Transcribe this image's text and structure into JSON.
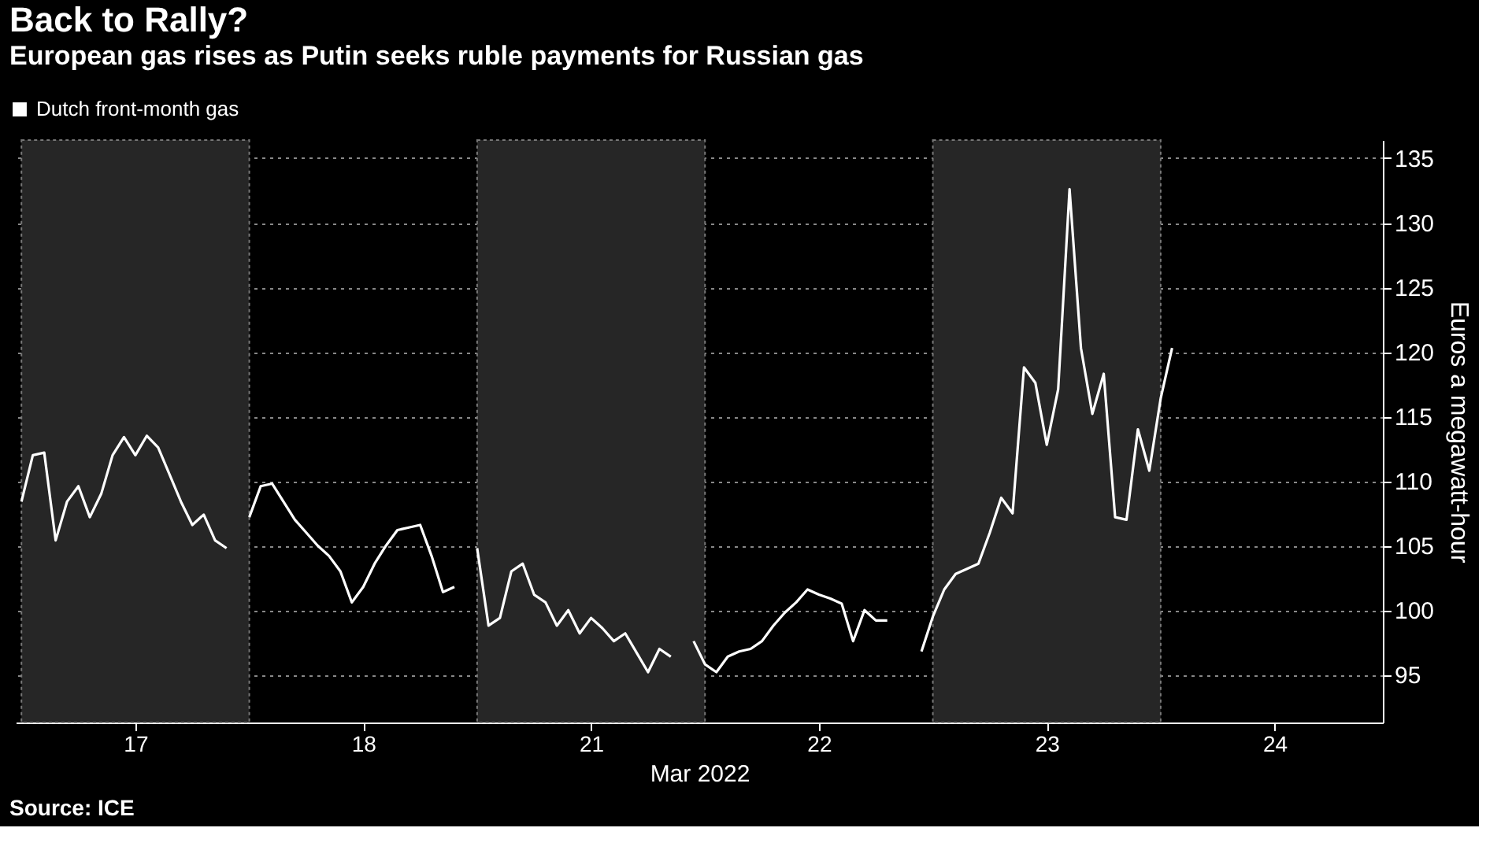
{
  "chart_data": {
    "type": "line",
    "title": "Back to Rally?",
    "subtitle": "European gas rises as Putin seeks ruble payments for Russian gas",
    "xlabel": "Mar 2022",
    "ylabel": "Euros a megawatt-hour",
    "annotations": [
      "Source: ICE"
    ],
    "categories": [
      null,
      null,
      null,
      null,
      null,
      null,
      null,
      null,
      null,
      null,
      "17",
      null,
      null,
      null,
      null,
      null,
      null,
      null,
      null,
      null,
      null,
      null,
      null,
      null,
      null,
      null,
      null,
      null,
      null,
      null,
      "18",
      null,
      null,
      null,
      null,
      null,
      null,
      null,
      null,
      null,
      null,
      null,
      null,
      null,
      null,
      null,
      null,
      null,
      null,
      null,
      "21",
      null,
      null,
      null,
      null,
      null,
      null,
      null,
      null,
      null,
      null,
      null,
      null,
      null,
      null,
      null,
      null,
      null,
      null,
      null,
      "22",
      null,
      null,
      null,
      null,
      null,
      null,
      null,
      null,
      null,
      null,
      null,
      null,
      null,
      null,
      null,
      null,
      null,
      null,
      null,
      "23",
      null,
      null,
      null,
      null,
      null,
      null,
      null,
      null,
      null,
      null,
      null,
      null,
      null,
      null,
      null,
      null,
      null,
      null,
      null,
      "24",
      null,
      null,
      null,
      null,
      null,
      null,
      null,
      null,
      null
    ],
    "ylim": [
      91.3,
      136.4
    ],
    "yticks": [
      95,
      100,
      105,
      110,
      115,
      120,
      125,
      130,
      135
    ],
    "grid": "y",
    "legend": "top left",
    "line_style": "solid",
    "series": [
      {
        "name": "Dutch front-month gas",
        "color": "#ffffff",
        "values": [
          108.4,
          112.0,
          112.2,
          105.4,
          108.4,
          109.6,
          107.2,
          109.0,
          112.0,
          113.4,
          112.0,
          113.5,
          112.6,
          110.5,
          108.4,
          106.6,
          107.4,
          105.4,
          104.8,
          null,
          107.2,
          109.6,
          109.8,
          108.4,
          107.0,
          106.0,
          105.0,
          104.2,
          103.0,
          100.6,
          101.8,
          103.6,
          105.0,
          106.2,
          106.4,
          106.6,
          104.2,
          101.4,
          101.8,
          null,
          104.8,
          98.8,
          99.4,
          103.0,
          103.6,
          101.2,
          100.6,
          98.8,
          100.0,
          98.2,
          99.4,
          98.6,
          97.6,
          98.2,
          96.7,
          95.2,
          97.0,
          96.4,
          null,
          97.6,
          95.8,
          95.2,
          96.4,
          96.8,
          97.0,
          97.6,
          98.8,
          99.8,
          100.6,
          101.6,
          101.2,
          100.9,
          100.5,
          97.6,
          100.0,
          99.2,
          99.2,
          null,
          null,
          96.8,
          99.5,
          101.6,
          102.8,
          103.2,
          103.6,
          106.0,
          108.7,
          107.5,
          118.8,
          117.6,
          112.8,
          117.1,
          132.6,
          120.3,
          115.2,
          118.3,
          107.2,
          107.0,
          114.0,
          110.8,
          116.4,
          120.3,
          null,
          null,
          null,
          null,
          null,
          null,
          null,
          null,
          null,
          null,
          null,
          null,
          null,
          null,
          null,
          null,
          null,
          null
        ]
      }
    ]
  }
}
